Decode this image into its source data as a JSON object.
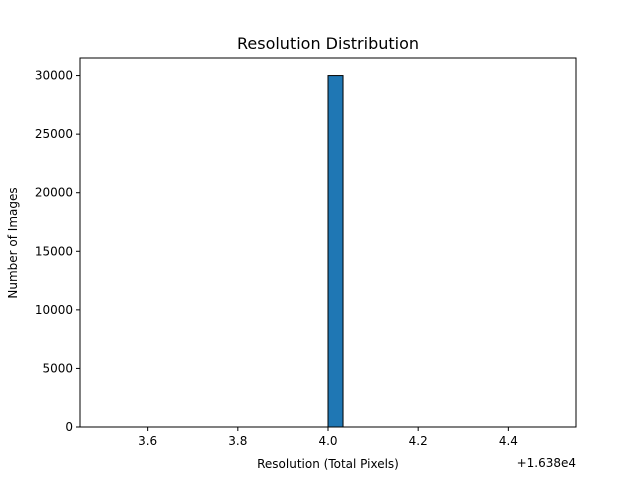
{
  "chart_data": {
    "type": "bar",
    "title": "Resolution Distribution",
    "xlabel": "Resolution (Total Pixels)",
    "ylabel": "Number of Images",
    "x_offset_label": "+1.638e4",
    "x_offset": 16380,
    "xlim": [
      16383.45,
      16384.55
    ],
    "ylim": [
      0,
      31500
    ],
    "xticks": [
      3.6,
      3.8,
      4.0,
      4.2,
      4.4
    ],
    "xtick_labels": [
      "3.6",
      "3.8",
      "4.0",
      "4.2",
      "4.4"
    ],
    "yticks": [
      0,
      5000,
      10000,
      15000,
      20000,
      25000,
      30000
    ],
    "ytick_labels": [
      "0",
      "5000",
      "10000",
      "15000",
      "20000",
      "25000",
      "30000"
    ],
    "bin_range": [
      16383.5,
      16384.5
    ],
    "bin_count": 30,
    "bars": [
      {
        "x_start": 16384.0,
        "x_end": 16384.0333,
        "value": 30000
      }
    ],
    "bar_color": "#1f77b4",
    "edge_color": "#000000",
    "grid": false,
    "legend": "none"
  }
}
